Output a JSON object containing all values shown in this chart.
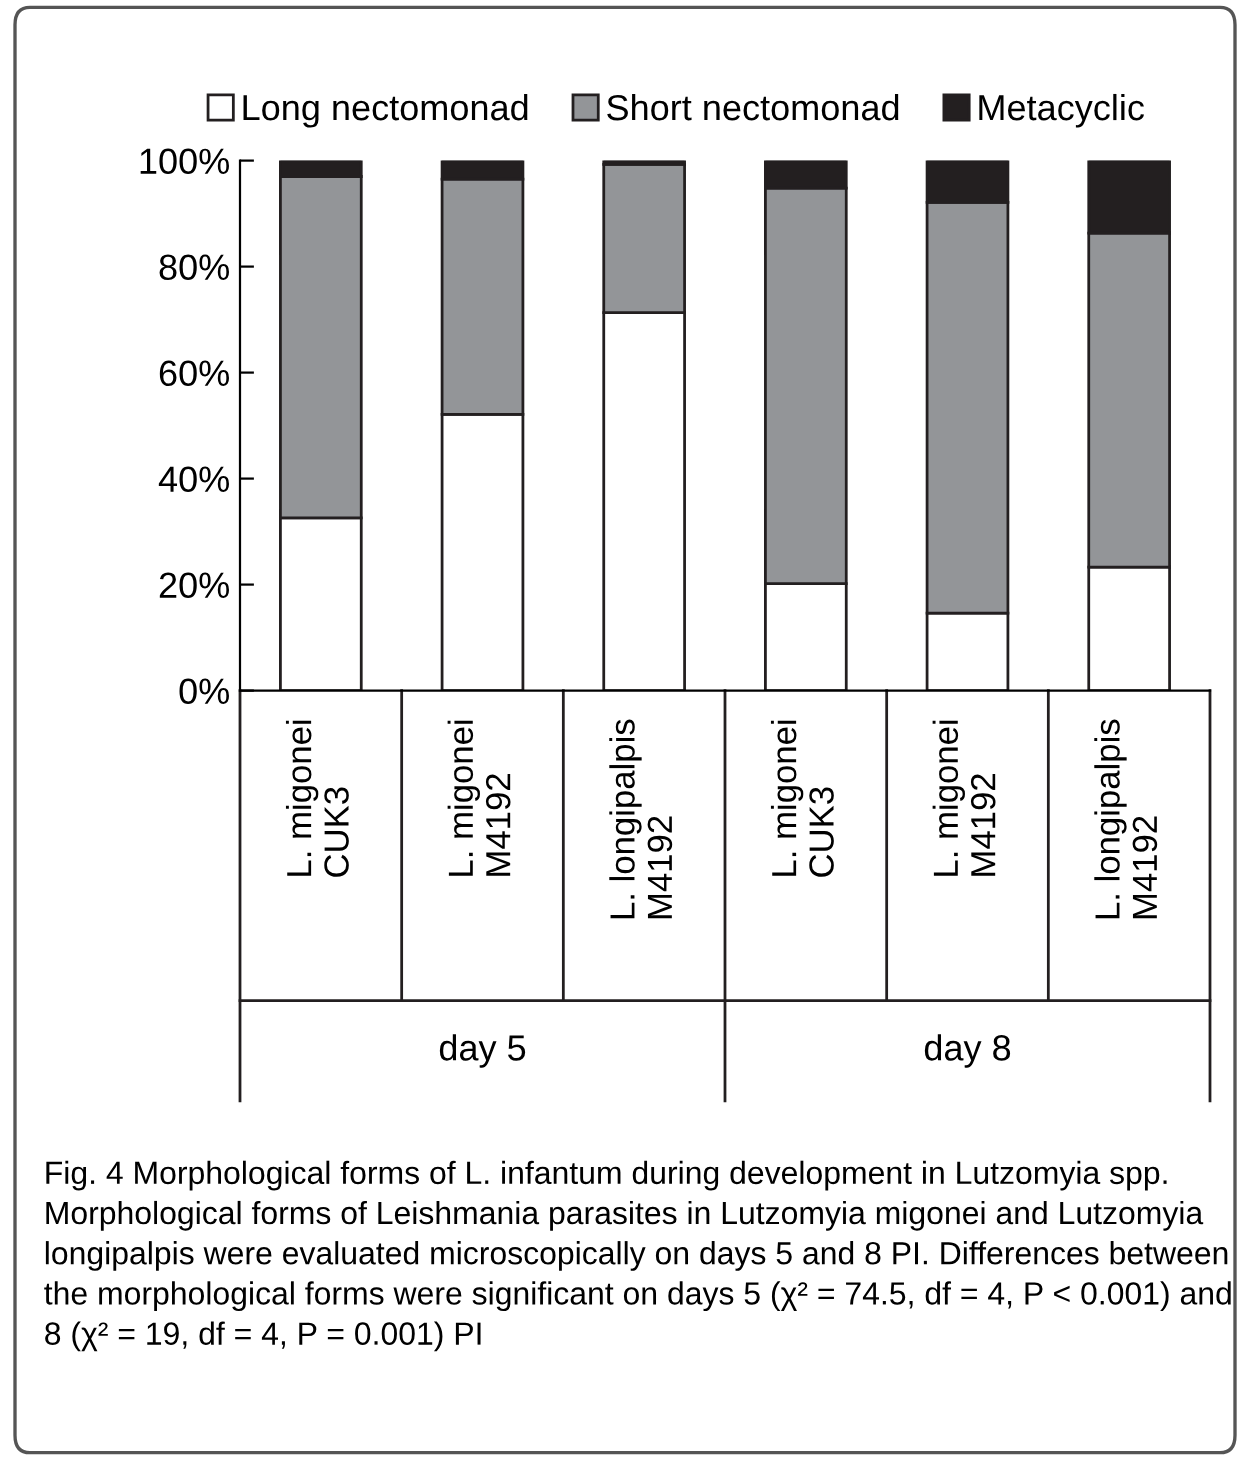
{
  "chart_data": {
    "type": "bar",
    "stacked": true,
    "legend": "top",
    "categories": [
      "L. migonei\nCUK3",
      "L. migonei\nM4192",
      "L. longipalpis\nM4192",
      "L. migonei\nCUK3",
      "L. migonei\nM4192",
      "L. longipalpis\nM4192"
    ],
    "series": [
      {
        "name": "Long nectomonad",
        "color": "#ffffff",
        "values": [
          32.6,
          52.1,
          71.3,
          20.2,
          14.6,
          23.3
        ]
      },
      {
        "name": "Short nectomonad",
        "color": "#939598",
        "values": [
          64.4,
          44.4,
          28.0,
          74.6,
          77.5,
          63.0
        ]
      },
      {
        "name": "Metacyclic",
        "color": "#231f20",
        "values": [
          3.0,
          3.5,
          0.7,
          5.2,
          7.9,
          13.7
        ]
      }
    ],
    "ylim": [
      0,
      100
    ],
    "yticks": [
      {
        "value": 0,
        "label": "0%"
      },
      {
        "value": 20,
        "label": "20%"
      },
      {
        "value": 40,
        "label": "40%"
      },
      {
        "value": 60,
        "label": "60%"
      },
      {
        "value": 80,
        "label": "80%"
      },
      {
        "value": 100,
        "label": "100%"
      }
    ],
    "grid": false,
    "annotations": [
      "day 5",
      "day 8",
      "Fig. 4 Morphological forms of L. infantum during development in Lutzomyia spp. Morphological forms of Leishmania parasites in Lutzomyia migonei and Lutzomyia longipalpis were evaluated microscopically on days 5 and 8 PI. Differences between the morphological forms were significant on days 5 (χ² = 74.5, df = 4, P < 0.001) and 8 (χ² = 19, df = 4, P = 0.001) PI"
    ]
  }
}
